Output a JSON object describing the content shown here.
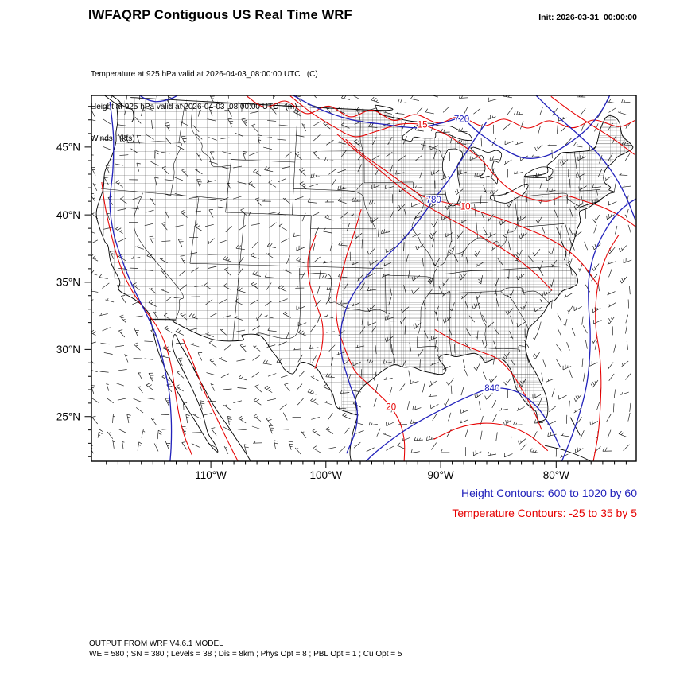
{
  "header": {
    "title": "IWFAQRP Contiguous US Real Time WRF",
    "init": "Init: 2026-03-31_00:00:00"
  },
  "subtitles": [
    "Temperature at 925 hPa valid at 2026-04-03_08:00:00 UTC   (C)",
    "Height at 925 hPa valid at 2026-04-03_08:00:00 UTC   (m)",
    "Winds   (kts)"
  ],
  "axes": {
    "lat": [
      {
        "label": "45°N",
        "value": 45
      },
      {
        "label": "40°N",
        "value": 40
      },
      {
        "label": "35°N",
        "value": 35
      },
      {
        "label": "30°N",
        "value": 30
      },
      {
        "label": "25°N",
        "value": 25
      }
    ],
    "lon": [
      {
        "label": "110°W",
        "value": -110
      },
      {
        "label": "100°W",
        "value": -100
      },
      {
        "label": "90°W",
        "value": -90
      },
      {
        "label": "80°W",
        "value": -80
      }
    ]
  },
  "contours": {
    "height": {
      "color": "#2222bb",
      "legend": "Height Contours: 600 to 1020 by 60",
      "labels": [
        {
          "text": "720",
          "lon": -85.3,
          "lat": 48.1
        },
        {
          "text": "780",
          "lon": -89.1,
          "lat": 42.1
        },
        {
          "text": "840",
          "lon": -84.9,
          "lat": 27.7
        }
      ]
    },
    "temperature": {
      "color": "#e60000",
      "legend": "Temperature Contours: -25 to 35 by 5",
      "labels": [
        {
          "text": "15",
          "lon": -89.8,
          "lat": 47.8
        },
        {
          "text": "10",
          "lon": -85.8,
          "lat": 41.5
        },
        {
          "text": "20",
          "lon": -94.2,
          "lat": 26.5
        }
      ]
    }
  },
  "footer": [
    "OUTPUT FROM WRF V4.6.1 MODEL",
    "WE = 580 ; SN = 380 ; Levels = 38 ; Dis = 8km ; Phys Opt = 8 ; PBL Opt = 1 ; Cu Opt = 5"
  ]
}
